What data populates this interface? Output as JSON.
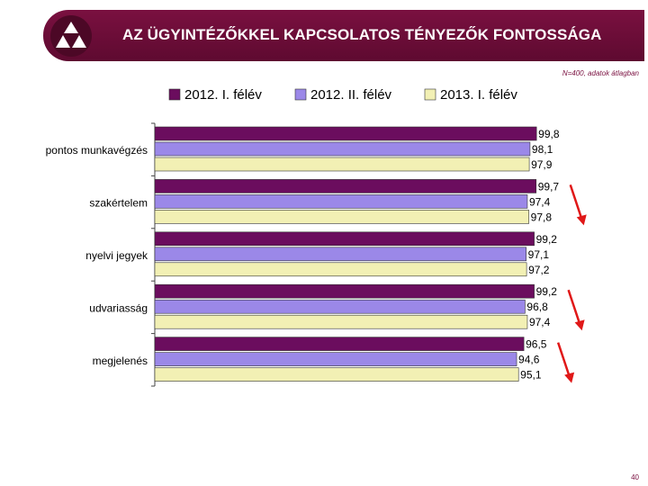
{
  "header": {
    "title": "AZ ÜGYINTÉZŐKKEL KAPCSOLATOS TÉNYEZŐK FONTOSSÁGA"
  },
  "note": "N=400, adatok átlagban",
  "page_number": "40",
  "icons": {
    "logo": "triangle-logo-icon",
    "arrow": "red-down-arrow-icon"
  },
  "colors": {
    "header_bg": "#6b0d38",
    "series": [
      "#6b0d5e",
      "#9b88e8",
      "#f2f0b4"
    ],
    "arrow": "#e01818"
  },
  "chart_data": {
    "type": "bar",
    "orientation": "horizontal",
    "categories": [
      "pontos munkavégzés",
      "szakértelem",
      "nyelvi jegyek",
      "udvariasság",
      "megjelenés"
    ],
    "series": [
      {
        "name": "2012. I. félév",
        "values": [
          99.8,
          99.7,
          99.2,
          99.2,
          96.5
        ],
        "labels": [
          "99,8",
          "99,7",
          "99,2",
          "99,2",
          "96,5"
        ]
      },
      {
        "name": "2012. II. félév",
        "values": [
          98.1,
          97.4,
          97.1,
          96.8,
          94.6
        ],
        "labels": [
          "98,1",
          "97,4",
          "97,1",
          "96,8",
          "94,6"
        ]
      },
      {
        "name": "2013. I. félév",
        "values": [
          97.9,
          97.8,
          97.2,
          97.4,
          95.1
        ],
        "labels": [
          "97,9",
          "97,8",
          "97,2",
          "97,4",
          "95,1"
        ]
      }
    ],
    "xlim": [
      0,
      100
    ],
    "legend_position": "top",
    "grid": false,
    "decline_arrows": [
      1,
      3,
      4
    ]
  }
}
